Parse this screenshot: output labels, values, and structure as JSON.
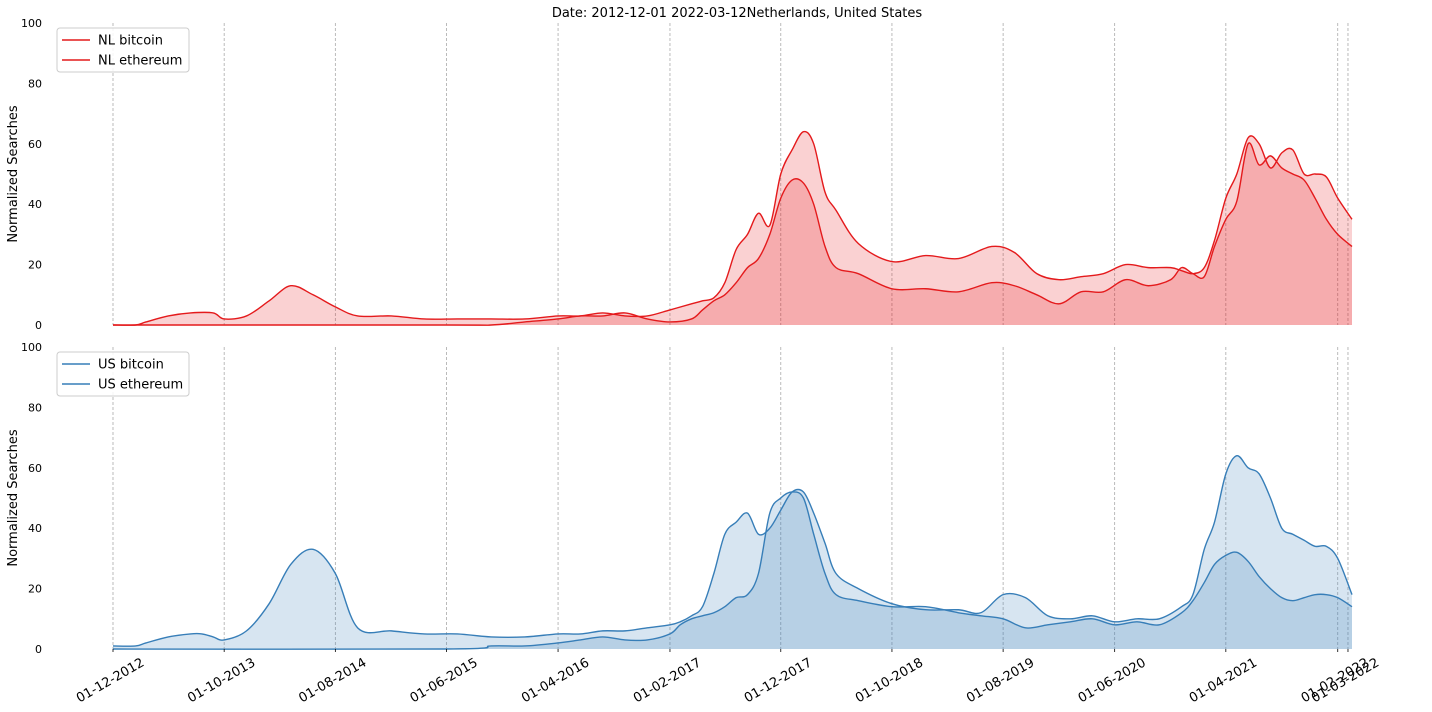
{
  "chart_data": {
    "type": "area",
    "title": "Date: 2012-12-01 2022-03-12Netherlands, United States",
    "ylabel": "Normalized Searches",
    "ylim": [
      0,
      100
    ],
    "yticks": [
      0,
      20,
      40,
      60,
      80,
      100
    ],
    "xlim": [
      "2012-12-01",
      "2022-03-12"
    ],
    "x_ticks": [
      {
        "date": "2012-12-01",
        "label": "01-12-2012"
      },
      {
        "date": "2013-10-01",
        "label": "01-10-2013"
      },
      {
        "date": "2014-08-01",
        "label": "01-08-2014"
      },
      {
        "date": "2015-06-01",
        "label": "01-06-2015"
      },
      {
        "date": "2016-04-01",
        "label": "01-04-2016"
      },
      {
        "date": "2017-02-01",
        "label": "01-02-2017"
      },
      {
        "date": "2017-12-01",
        "label": "01-12-2017"
      },
      {
        "date": "2018-10-01",
        "label": "01-10-2018"
      },
      {
        "date": "2019-08-01",
        "label": "01-08-2019"
      },
      {
        "date": "2020-06-01",
        "label": "01-06-2020"
      },
      {
        "date": "2021-04-01",
        "label": "01-04-2021"
      },
      {
        "date": "2022-02-01",
        "label": "01-02-2022"
      },
      {
        "date": "2022-03-01",
        "label": "01-03-2022"
      }
    ],
    "grid": "vertical dashed at x ticks",
    "legend_position": "top-left",
    "panels": [
      {
        "name": "Netherlands",
        "color": "#e41a1c",
        "legend": [
          "NL bitcoin",
          "NL ethereum"
        ],
        "series": [
          {
            "name": "NL bitcoin",
            "x": [
              "2012-12-01",
              "2013-02-01",
              "2013-03-01",
              "2013-05-01",
              "2013-07-01",
              "2013-09-01",
              "2013-10-01",
              "2013-12-01",
              "2014-02-01",
              "2014-04-01",
              "2014-06-01",
              "2014-08-01",
              "2014-10-01",
              "2015-01-01",
              "2015-04-01",
              "2015-07-01",
              "2015-10-01",
              "2016-01-01",
              "2016-04-01",
              "2016-06-01",
              "2016-08-01",
              "2016-10-01",
              "2016-12-01",
              "2017-02-01",
              "2017-04-01",
              "2017-05-01",
              "2017-06-01",
              "2017-07-01",
              "2017-08-01",
              "2017-09-01",
              "2017-10-01",
              "2017-11-01",
              "2017-12-01",
              "2018-01-01",
              "2018-02-01",
              "2018-03-01",
              "2018-04-01",
              "2018-05-01",
              "2018-07-01",
              "2018-10-01",
              "2019-01-01",
              "2019-04-01",
              "2019-07-01",
              "2019-09-01",
              "2019-11-01",
              "2020-01-01",
              "2020-03-01",
              "2020-05-01",
              "2020-07-01",
              "2020-09-01",
              "2020-11-01",
              "2020-12-01",
              "2021-01-01",
              "2021-02-01",
              "2021-03-01",
              "2021-04-01",
              "2021-05-01",
              "2021-06-01",
              "2021-07-01",
              "2021-08-01",
              "2021-09-01",
              "2021-10-01",
              "2021-11-01",
              "2021-12-01",
              "2022-01-01",
              "2022-02-01",
              "2022-03-12"
            ],
            "y": [
              0,
              0,
              1,
              3,
              4,
              4,
              2,
              3,
              8,
              13,
              10,
              6,
              3,
              3,
              2,
              2,
              2,
              2,
              3,
              3,
              4,
              3,
              3,
              5,
              7,
              8,
              9,
              14,
              25,
              30,
              37,
              33,
              50,
              58,
              64,
              60,
              44,
              38,
              27,
              21,
              23,
              22,
              26,
              24,
              17,
              15,
              16,
              17,
              20,
              19,
              19,
              18,
              17,
              19,
              28,
              42,
              50,
              62,
              60,
              52,
              57,
              58,
              50,
              50,
              49,
              42,
              35
            ]
          },
          {
            "name": "NL ethereum",
            "x": [
              "2012-12-01",
              "2015-06-01",
              "2015-10-01",
              "2016-01-01",
              "2016-04-01",
              "2016-06-01",
              "2016-08-01",
              "2016-10-01",
              "2016-12-01",
              "2017-02-01",
              "2017-04-01",
              "2017-05-01",
              "2017-06-01",
              "2017-07-01",
              "2017-08-01",
              "2017-09-01",
              "2017-10-01",
              "2017-11-01",
              "2017-12-01",
              "2018-01-01",
              "2018-02-01",
              "2018-03-01",
              "2018-04-01",
              "2018-05-01",
              "2018-07-01",
              "2018-10-01",
              "2019-01-01",
              "2019-04-01",
              "2019-07-01",
              "2019-09-01",
              "2019-11-01",
              "2020-01-01",
              "2020-03-01",
              "2020-05-01",
              "2020-07-01",
              "2020-09-01",
              "2020-11-01",
              "2020-12-01",
              "2021-01-01",
              "2021-02-01",
              "2021-03-01",
              "2021-04-01",
              "2021-05-01",
              "2021-06-01",
              "2021-07-01",
              "2021-08-01",
              "2021-09-01",
              "2021-10-01",
              "2021-11-01",
              "2021-12-01",
              "2022-01-01",
              "2022-02-01",
              "2022-03-12"
            ],
            "y": [
              0,
              0,
              0,
              1,
              2,
              3,
              3,
              4,
              2,
              1,
              2,
              5,
              8,
              10,
              14,
              19,
              22,
              30,
              42,
              48,
              47,
              40,
              26,
              19,
              17,
              12,
              12,
              11,
              14,
              13,
              10,
              7,
              11,
              11,
              15,
              13,
              15,
              19,
              17,
              16,
              26,
              35,
              41,
              60,
              53,
              56,
              52,
              50,
              48,
              42,
              35,
              30,
              26
            ]
          }
        ]
      },
      {
        "name": "United States",
        "color": "#377eb8",
        "legend": [
          "US bitcoin",
          "US ethereum"
        ],
        "series": [
          {
            "name": "US bitcoin",
            "x": [
              "2012-12-01",
              "2013-02-01",
              "2013-03-01",
              "2013-05-01",
              "2013-07-01",
              "2013-08-01",
              "2013-09-01",
              "2013-10-01",
              "2013-12-01",
              "2014-02-01",
              "2014-04-01",
              "2014-06-01",
              "2014-08-01",
              "2014-10-01",
              "2015-01-01",
              "2015-04-01",
              "2015-07-01",
              "2015-10-01",
              "2016-01-01",
              "2016-04-01",
              "2016-06-01",
              "2016-08-01",
              "2016-10-01",
              "2016-12-01",
              "2017-02-01",
              "2017-03-01",
              "2017-04-01",
              "2017-05-01",
              "2017-06-01",
              "2017-07-01",
              "2017-08-01",
              "2017-09-01",
              "2017-10-01",
              "2017-11-01",
              "2017-12-01",
              "2018-01-01",
              "2018-02-01",
              "2018-03-01",
              "2018-04-01",
              "2018-05-01",
              "2018-07-01",
              "2018-10-01",
              "2019-01-01",
              "2019-04-01",
              "2019-06-01",
              "2019-08-01",
              "2019-10-01",
              "2019-12-01",
              "2020-02-01",
              "2020-04-01",
              "2020-06-01",
              "2020-08-01",
              "2020-10-01",
              "2020-12-01",
              "2021-01-01",
              "2021-02-01",
              "2021-03-01",
              "2021-04-01",
              "2021-05-01",
              "2021-06-01",
              "2021-07-01",
              "2021-08-01",
              "2021-09-01",
              "2021-10-01",
              "2021-11-01",
              "2021-12-01",
              "2022-01-01",
              "2022-02-01",
              "2022-03-12"
            ],
            "y": [
              1,
              1,
              2,
              4,
              5,
              5,
              4,
              3,
              6,
              15,
              28,
              33,
              25,
              7,
              6,
              5,
              5,
              4,
              4,
              5,
              5,
              6,
              6,
              7,
              8,
              9,
              11,
              14,
              25,
              38,
              42,
              45,
              38,
              40,
              46,
              52,
              52,
              45,
              35,
              25,
              20,
              15,
              13,
              13,
              12,
              18,
              17,
              11,
              10,
              11,
              9,
              10,
              10,
              14,
              18,
              33,
              42,
              58,
              64,
              60,
              58,
              50,
              40,
              38,
              36,
              34,
              34,
              30,
              18
            ]
          },
          {
            "name": "US ethereum",
            "x": [
              "2012-12-01",
              "2015-06-01",
              "2015-10-01",
              "2016-01-01",
              "2016-04-01",
              "2016-06-01",
              "2016-08-01",
              "2016-10-01",
              "2016-12-01",
              "2017-02-01",
              "2017-03-01",
              "2017-04-01",
              "2017-05-01",
              "2017-06-01",
              "2017-07-01",
              "2017-08-01",
              "2017-09-01",
              "2017-10-01",
              "2017-11-01",
              "2017-12-01",
              "2018-01-01",
              "2018-02-01",
              "2018-03-01",
              "2018-04-01",
              "2018-05-01",
              "2018-07-01",
              "2018-10-01",
              "2019-01-01",
              "2019-04-01",
              "2019-06-01",
              "2019-08-01",
              "2019-10-01",
              "2019-12-01",
              "2020-02-01",
              "2020-04-01",
              "2020-06-01",
              "2020-08-01",
              "2020-10-01",
              "2020-12-01",
              "2021-01-01",
              "2021-02-01",
              "2021-03-01",
              "2021-04-01",
              "2021-05-01",
              "2021-06-01",
              "2021-07-01",
              "2021-08-01",
              "2021-09-01",
              "2021-10-01",
              "2021-11-01",
              "2021-12-01",
              "2022-01-01",
              "2022-02-01",
              "2022-03-12"
            ],
            "y": [
              0,
              0,
              1,
              1,
              2,
              3,
              4,
              3,
              3,
              5,
              8,
              10,
              11,
              12,
              14,
              17,
              18,
              25,
              45,
              50,
              52,
              50,
              38,
              25,
              18,
              16,
              14,
              14,
              12,
              11,
              10,
              7,
              8,
              9,
              10,
              8,
              9,
              8,
              12,
              16,
              22,
              28,
              31,
              32,
              29,
              24,
              20,
              17,
              16,
              17,
              18,
              18,
              17,
              14
            ]
          }
        ]
      }
    ]
  }
}
